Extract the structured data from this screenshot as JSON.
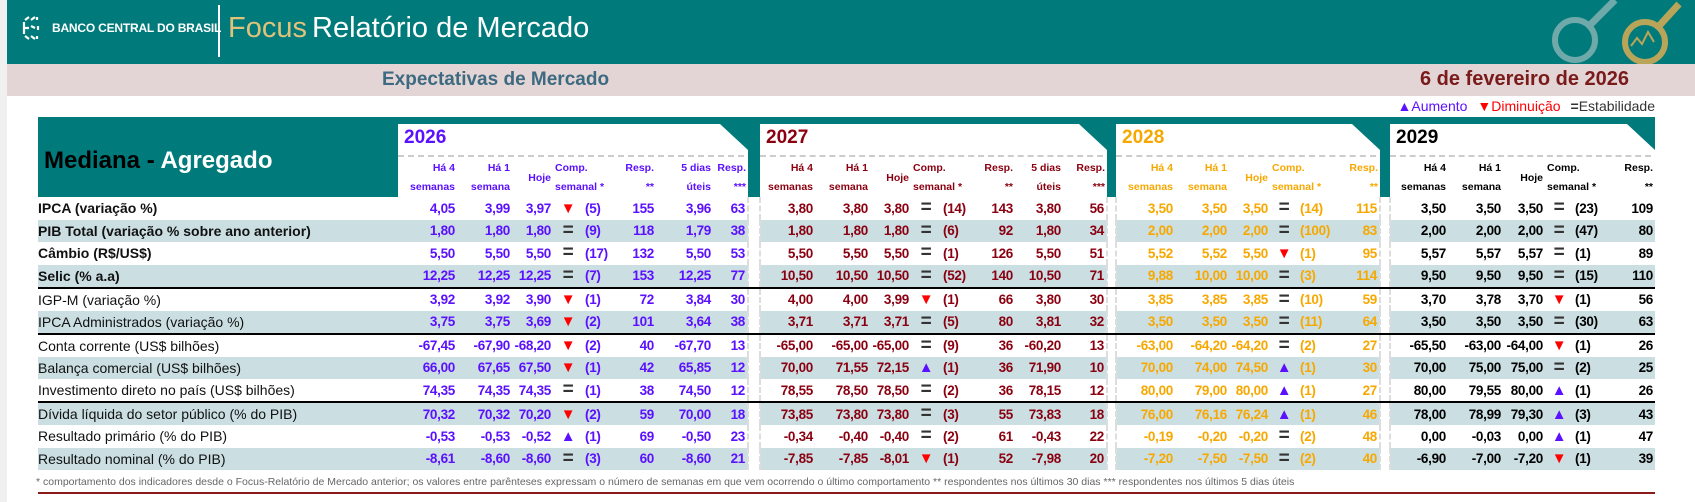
{
  "header": {
    "bank": "BANCO CENTRAL DO BRASIL",
    "focus": "Focus",
    "title": "Relatório de Mercado"
  },
  "band": {
    "subtitle": "Expectativas de Mercado",
    "date": "6 de fevereiro de 2026"
  },
  "legend": {
    "up": "Aumento",
    "down": "Diminuição",
    "equal": "Estabilidade"
  },
  "icons": {
    "up": "▲",
    "down": "▼",
    "equal": "="
  },
  "table_title": {
    "part1": "Mediana - ",
    "part2": "Agregado"
  },
  "years": [
    {
      "year": "2026",
      "colors": "#5b10ff",
      "headers": [
        [
          "Há 4",
          "semanas"
        ],
        [
          "Há 1",
          "semana"
        ],
        [
          "Hoje"
        ],
        [
          "Comp.",
          "semanal *"
        ],
        [
          "Resp.",
          "**"
        ],
        [
          "5 dias",
          "úteis"
        ],
        [
          "Resp.",
          "***"
        ]
      ]
    },
    {
      "year": "2027",
      "colors": "#8a0010",
      "headers": [
        [
          "Há 4",
          "semanas"
        ],
        [
          "Há 1",
          "semana"
        ],
        [
          "Hoje"
        ],
        [
          "Comp.",
          "semanal *"
        ],
        [
          "Resp.",
          "**"
        ],
        [
          "5 dias",
          "úteis"
        ],
        [
          "Resp.",
          "***"
        ]
      ]
    },
    {
      "year": "2028",
      "colors": "#f7a800",
      "headers": [
        [
          "Há 4",
          "semanas"
        ],
        [
          "Há 1",
          "semana"
        ],
        [
          "Hoje"
        ],
        [
          "Comp.",
          "semanal *"
        ],
        [
          "Resp.",
          "**"
        ]
      ]
    },
    {
      "year": "2029",
      "colors": "#000000",
      "headers": [
        [
          "Há 4",
          "semanas"
        ],
        [
          "Há 1",
          "semana"
        ],
        [
          "Hoje"
        ],
        [
          "Comp.",
          "semanal *"
        ],
        [
          "Resp.",
          "**"
        ]
      ]
    }
  ],
  "rows": [
    {
      "label": "IPCA (variação %)",
      "v": {
        "2026": [
          "4,05",
          "3,99",
          "3,97",
          "down",
          "(5)",
          "155",
          "3,96",
          "63"
        ],
        "2027": [
          "3,80",
          "3,80",
          "3,80",
          "equal",
          "(14)",
          "143",
          "3,80",
          "56"
        ],
        "2028": [
          "3,50",
          "3,50",
          "3,50",
          "equal",
          "(14)",
          "115"
        ],
        "2029": [
          "3,50",
          "3,50",
          "3,50",
          "equal",
          "(23)",
          "109"
        ]
      }
    },
    {
      "label": "PIB Total (variação % sobre ano anterior)",
      "v": {
        "2026": [
          "1,80",
          "1,80",
          "1,80",
          "equal",
          "(9)",
          "118",
          "1,79",
          "38"
        ],
        "2027": [
          "1,80",
          "1,80",
          "1,80",
          "equal",
          "(6)",
          "92",
          "1,80",
          "34"
        ],
        "2028": [
          "2,00",
          "2,00",
          "2,00",
          "equal",
          "(100)",
          "83"
        ],
        "2029": [
          "2,00",
          "2,00",
          "2,00",
          "equal",
          "(47)",
          "80"
        ]
      }
    },
    {
      "label": "Câmbio (R$/US$)",
      "v": {
        "2026": [
          "5,50",
          "5,50",
          "5,50",
          "equal",
          "(17)",
          "132",
          "5,50",
          "53"
        ],
        "2027": [
          "5,50",
          "5,50",
          "5,50",
          "equal",
          "(1)",
          "126",
          "5,50",
          "51"
        ],
        "2028": [
          "5,52",
          "5,52",
          "5,50",
          "down",
          "(1)",
          "95"
        ],
        "2029": [
          "5,57",
          "5,57",
          "5,57",
          "equal",
          "(1)",
          "89"
        ]
      }
    },
    {
      "label": "Selic (% a.a)",
      "v": {
        "2026": [
          "12,25",
          "12,25",
          "12,25",
          "equal",
          "(7)",
          "153",
          "12,25",
          "77"
        ],
        "2027": [
          "10,50",
          "10,50",
          "10,50",
          "equal",
          "(52)",
          "140",
          "10,50",
          "71"
        ],
        "2028": [
          "9,88",
          "10,00",
          "10,00",
          "equal",
          "(3)",
          "114"
        ],
        "2029": [
          "9,50",
          "9,50",
          "9,50",
          "equal",
          "(15)",
          "110"
        ]
      }
    },
    {
      "label": "IGP-M (variação %)",
      "v": {
        "2026": [
          "3,92",
          "3,92",
          "3,90",
          "down",
          "(1)",
          "72",
          "3,84",
          "30"
        ],
        "2027": [
          "4,00",
          "4,00",
          "3,99",
          "down",
          "(1)",
          "66",
          "3,80",
          "30"
        ],
        "2028": [
          "3,85",
          "3,85",
          "3,85",
          "equal",
          "(10)",
          "59"
        ],
        "2029": [
          "3,70",
          "3,78",
          "3,70",
          "down",
          "(1)",
          "56"
        ]
      }
    },
    {
      "label": "IPCA Administrados (variação %)",
      "v": {
        "2026": [
          "3,75",
          "3,75",
          "3,69",
          "down",
          "(2)",
          "101",
          "3,64",
          "38"
        ],
        "2027": [
          "3,71",
          "3,71",
          "3,71",
          "equal",
          "(5)",
          "80",
          "3,81",
          "32"
        ],
        "2028": [
          "3,50",
          "3,50",
          "3,50",
          "equal",
          "(11)",
          "64"
        ],
        "2029": [
          "3,50",
          "3,50",
          "3,50",
          "equal",
          "(30)",
          "63"
        ]
      }
    },
    {
      "label": "Conta corrente (US$ bilhões)",
      "v": {
        "2026": [
          "-67,45",
          "-67,90",
          "-68,20",
          "down",
          "(2)",
          "40",
          "-67,70",
          "13"
        ],
        "2027": [
          "-65,00",
          "-65,00",
          "-65,00",
          "equal",
          "(9)",
          "36",
          "-60,20",
          "13"
        ],
        "2028": [
          "-63,00",
          "-64,20",
          "-64,20",
          "equal",
          "(2)",
          "27"
        ],
        "2029": [
          "-65,50",
          "-63,00",
          "-64,00",
          "down",
          "(1)",
          "26"
        ]
      }
    },
    {
      "label": "Balança comercial (US$ bilhões)",
      "v": {
        "2026": [
          "66,00",
          "67,65",
          "67,50",
          "down",
          "(1)",
          "42",
          "65,85",
          "12"
        ],
        "2027": [
          "70,00",
          "71,55",
          "72,15",
          "up",
          "(1)",
          "36",
          "71,90",
          "10"
        ],
        "2028": [
          "70,00",
          "74,00",
          "74,50",
          "up",
          "(1)",
          "30"
        ],
        "2029": [
          "70,00",
          "75,00",
          "75,00",
          "equal",
          "(2)",
          "25"
        ]
      }
    },
    {
      "label": "Investimento direto no país (US$ bilhões)",
      "v": {
        "2026": [
          "74,35",
          "74,35",
          "74,35",
          "equal",
          "(1)",
          "38",
          "74,50",
          "12"
        ],
        "2027": [
          "78,55",
          "78,50",
          "78,50",
          "equal",
          "(2)",
          "36",
          "78,15",
          "12"
        ],
        "2028": [
          "80,00",
          "79,00",
          "80,00",
          "up",
          "(1)",
          "27"
        ],
        "2029": [
          "80,00",
          "79,55",
          "80,00",
          "up",
          "(1)",
          "26"
        ]
      }
    },
    {
      "label": "Dívida líquida do setor público (% do PIB)",
      "v": {
        "2026": [
          "70,32",
          "70,32",
          "70,20",
          "down",
          "(2)",
          "59",
          "70,00",
          "18"
        ],
        "2027": [
          "73,85",
          "73,80",
          "73,80",
          "equal",
          "(3)",
          "55",
          "73,83",
          "18"
        ],
        "2028": [
          "76,00",
          "76,16",
          "76,24",
          "up",
          "(1)",
          "46"
        ],
        "2029": [
          "78,00",
          "78,99",
          "79,30",
          "up",
          "(3)",
          "43"
        ]
      }
    },
    {
      "label": "Resultado primário (% do PIB)",
      "v": {
        "2026": [
          "-0,53",
          "-0,53",
          "-0,52",
          "up",
          "(1)",
          "69",
          "-0,50",
          "23"
        ],
        "2027": [
          "-0,34",
          "-0,40",
          "-0,40",
          "equal",
          "(2)",
          "61",
          "-0,43",
          "22"
        ],
        "2028": [
          "-0,19",
          "-0,20",
          "-0,20",
          "equal",
          "(2)",
          "48"
        ],
        "2029": [
          "0,00",
          "-0,03",
          "0,00",
          "up",
          "(1)",
          "47"
        ]
      }
    },
    {
      "label": "Resultado nominal (% do PIB)",
      "v": {
        "2026": [
          "-8,61",
          "-8,60",
          "-8,60",
          "equal",
          "(3)",
          "60",
          "-8,60",
          "21"
        ],
        "2027": [
          "-7,85",
          "-7,85",
          "-8,01",
          "down",
          "(1)",
          "52",
          "-7,98",
          "20"
        ],
        "2028": [
          "-7,20",
          "-7,50",
          "-7,50",
          "equal",
          "(2)",
          "40"
        ],
        "2029": [
          "-6,90",
          "-7,00",
          "-7,20",
          "down",
          "(1)",
          "39"
        ]
      }
    }
  ],
  "footnote": "* comportamento dos indicadores desde o Focus-Relatório de Mercado anterior; os valores entre parênteses expressam o número de semanas em que vem ocorrendo o último comportamento ** respondentes nos últimos 30 dias *** respondentes nos últimos 5 dias úteis"
}
